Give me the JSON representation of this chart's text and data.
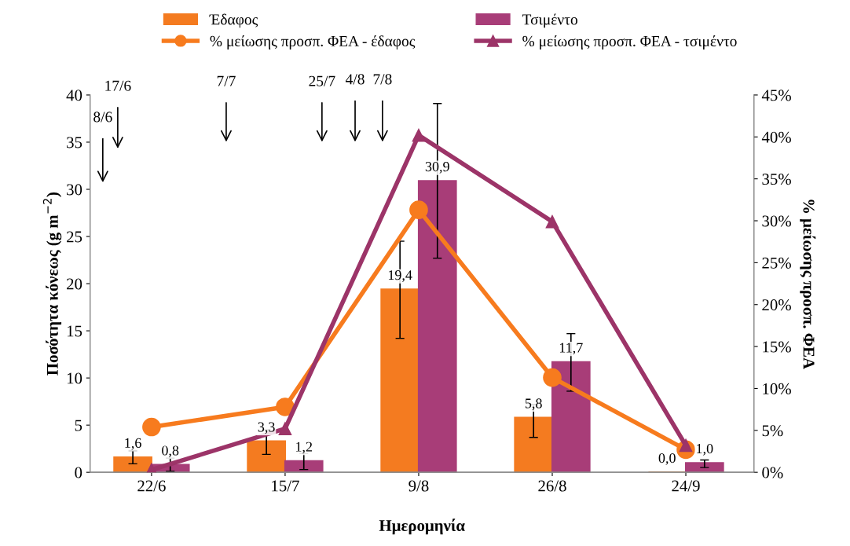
{
  "chart_data": {
    "type": "bar",
    "xlabel": "Ημερομηνία",
    "ylabel": "Ποσότητα κόνεως (g m$^{−2}$)",
    "y2label": "% μείωσης προσπ. ΦΕΑ",
    "categories": [
      "22/6",
      "15/7",
      "9/8",
      "26/8",
      "24/9"
    ],
    "series": [
      {
        "name": "Έδαφος",
        "color": "#f47b20",
        "values": [
          1.6,
          3.3,
          19.4,
          5.8,
          0.0
        ],
        "value_labels": [
          "1,6",
          "3,3",
          "19,4",
          "5,8",
          "0,0"
        ],
        "errors": [
          [
            0.9,
            2.3
          ],
          [
            1.9,
            4.5
          ],
          [
            14.2,
            24.5
          ],
          [
            3.7,
            7.2
          ],
          null
        ]
      },
      {
        "name": "Τσιμέντο",
        "color": "#a83d78",
        "values": [
          0.8,
          1.2,
          30.9,
          11.7,
          1.0
        ],
        "value_labels": [
          "0,8",
          "1,2",
          "30,9",
          "11,7",
          "1,0"
        ],
        "errors": [
          [
            0.1,
            1.5
          ],
          [
            0.3,
            2.0
          ],
          [
            22.7,
            39.1
          ],
          [
            8.6,
            14.7
          ],
          [
            0.5,
            1.3
          ]
        ]
      },
      {
        "name": "% μείωσης προσπ. ΦΕΑ - έδαφος",
        "type": "line",
        "axis": "y2",
        "marker": "circle",
        "color": "#f77b1e",
        "values": [
          5.4,
          7.8,
          31.3,
          11.3,
          2.7
        ]
      },
      {
        "name": "% μείωσης προσπ. ΦΕΑ - τσιμέντο",
        "type": "line",
        "axis": "y2",
        "marker": "triangle",
        "color": "#9c3468",
        "values": [
          0.3,
          5.2,
          40.2,
          29.9,
          3.2
        ]
      }
    ],
    "ylim": [
      0,
      40
    ],
    "yticks": [
      0,
      5,
      10,
      15,
      20,
      25,
      30,
      35,
      40
    ],
    "y2lim": [
      0,
      45
    ],
    "y2ticks": [
      {
        "value": 0,
        "label": "0%"
      },
      {
        "value": 5,
        "label": "5%"
      },
      {
        "value": 10,
        "label": "10%"
      },
      {
        "value": 15,
        "label": "15%"
      },
      {
        "value": 20,
        "label": "20%"
      },
      {
        "value": 25,
        "label": "25%"
      },
      {
        "value": 30,
        "label": "30%"
      },
      {
        "value": 35,
        "label": "35%"
      },
      {
        "value": 40,
        "label": "40%"
      },
      {
        "value": 45,
        "label": "45%"
      }
    ],
    "annotations": [
      "8/6",
      "17/6",
      "7/7",
      "25/7",
      "4/8",
      "7/8"
    ],
    "grid": false,
    "legend": "top"
  }
}
